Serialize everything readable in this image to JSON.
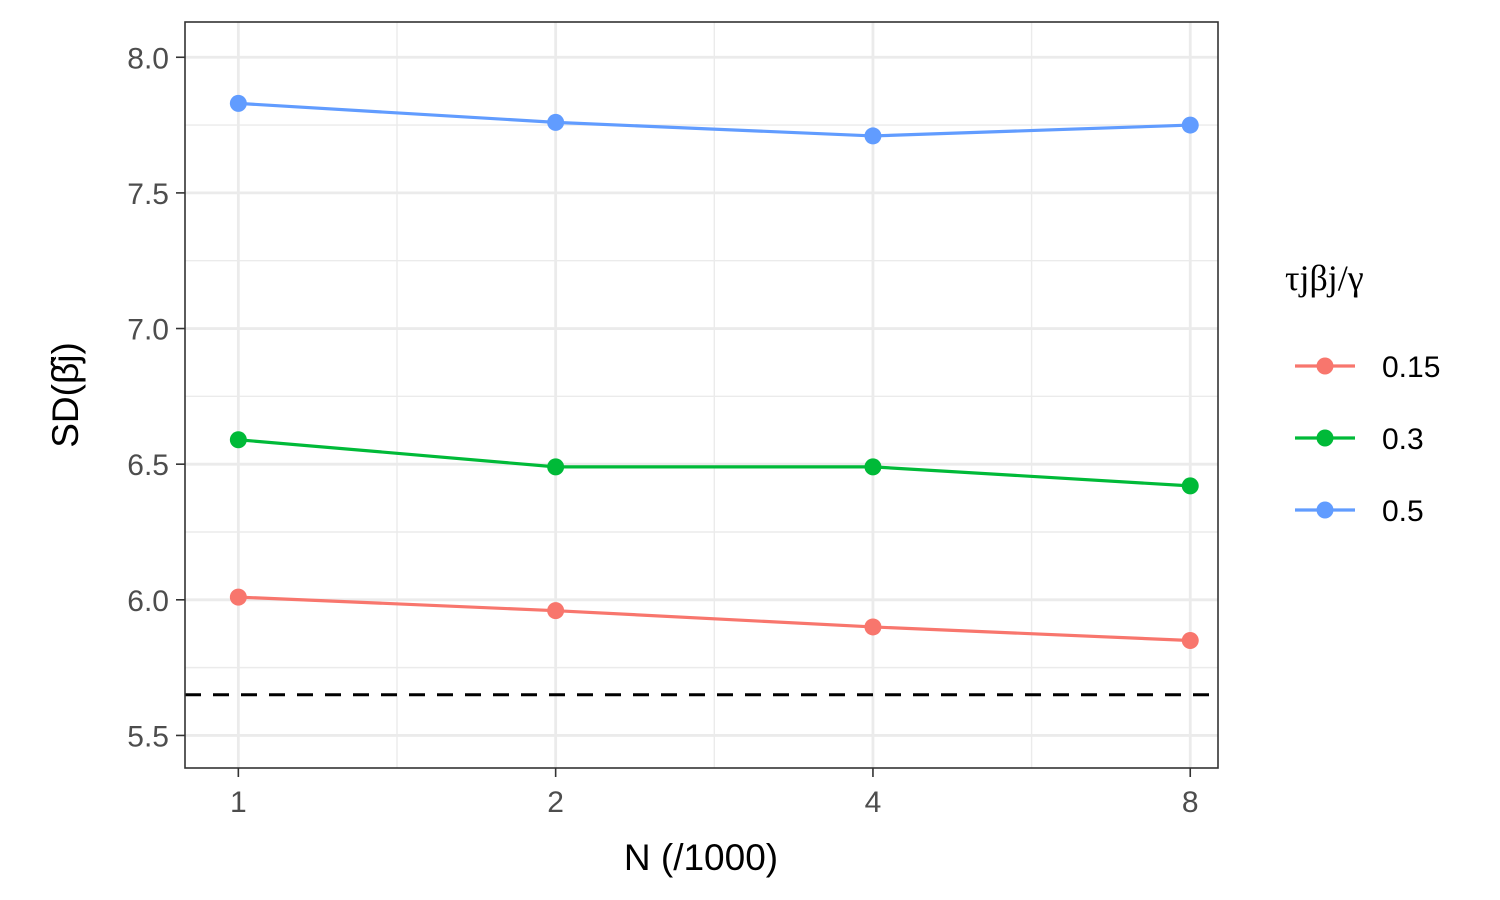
{
  "chart_data": {
    "type": "line",
    "x_scale": "log2",
    "xlabel": "N (/1000)",
    "ylabel": "SD(β̂j)",
    "x_ticks": [
      1,
      2,
      4,
      8
    ],
    "x_tick_labels": [
      "1",
      "2",
      "4",
      "8"
    ],
    "y_ticks": [
      5.5,
      6.0,
      6.5,
      7.0,
      7.5,
      8.0
    ],
    "y_tick_labels": [
      "5.5",
      "6.0",
      "6.5",
      "7.0",
      "7.5",
      "8.0"
    ],
    "xlim": [
      0.89,
      8.5
    ],
    "ylim": [
      5.38,
      8.13
    ],
    "grid": true,
    "legend": {
      "title": "τjβj/γ",
      "placement": "right"
    },
    "x": [
      1,
      2,
      4,
      8
    ],
    "series": [
      {
        "name": "0.15",
        "color": "#F8766D",
        "values": [
          6.01,
          5.96,
          5.9,
          5.85
        ]
      },
      {
        "name": "0.3",
        "color": "#00BA38",
        "values": [
          6.59,
          6.49,
          6.49,
          6.42
        ]
      },
      {
        "name": "0.5",
        "color": "#619CFF",
        "values": [
          7.83,
          7.76,
          7.71,
          7.75
        ]
      }
    ],
    "reference_line": {
      "y": 5.65,
      "style": "dashed",
      "color": "#000000"
    }
  }
}
